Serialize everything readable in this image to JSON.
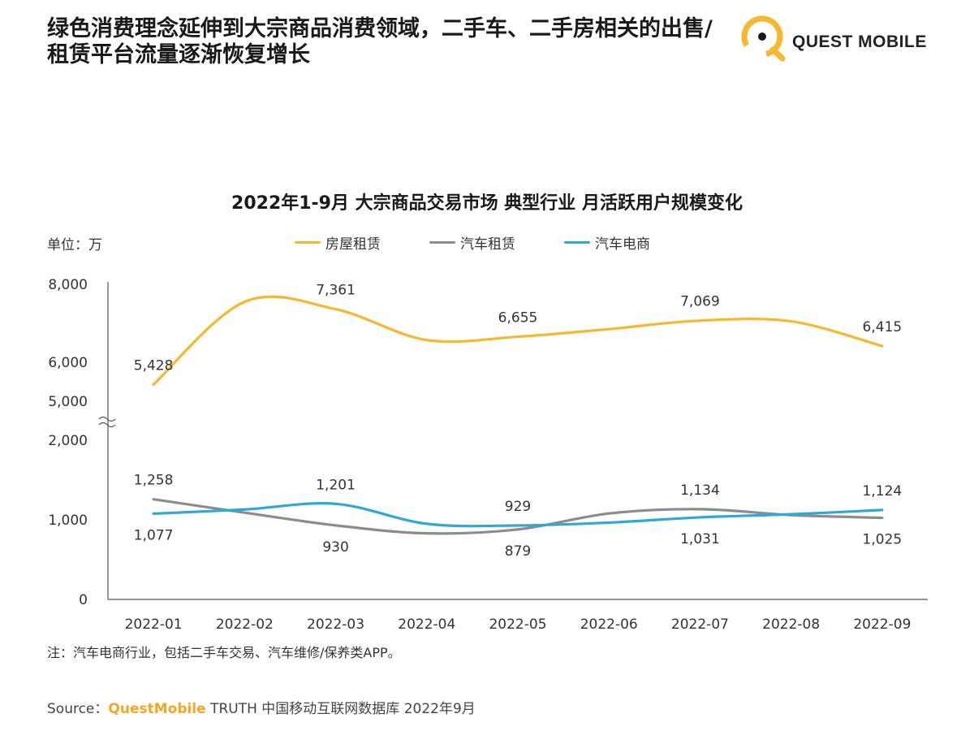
{
  "header": {
    "title": "绿色消费理念延伸到大宗商品消费领域，二手车、二手房相关的出售/租赁平台流量逐渐恢复增长",
    "brand": "QUEST MOBILE"
  },
  "chart": {
    "title": "2022年1-9月 大宗商品交易市场 典型行业 月活跃用户规模变化",
    "unit": "单位：万"
  },
  "colors": {
    "house": "#F5B82E",
    "car_rental": "#8C8C8C",
    "car_ecom": "#2EA8D8"
  },
  "chart_data": {
    "type": "line",
    "title": "2022年1-9月 大宗商品交易市场 典型行业 月活跃用户规模变化",
    "ylabel": "单位：万",
    "x": [
      "2022-01",
      "2022-02",
      "2022-03",
      "2022-04",
      "2022-05",
      "2022-06",
      "2022-07",
      "2022-08",
      "2022-09"
    ],
    "yticks": [
      "0",
      "1,000",
      "2,000",
      "5,000",
      "6,000",
      "8,000"
    ],
    "axis_break": "between 2,000 and 5,000",
    "legend_position": "top",
    "series": [
      {
        "name": "房屋租赁",
        "values": [
          5428,
          7550,
          7361,
          6570,
          6655,
          6850,
          7069,
          7050,
          6415
        ],
        "labels": [
          "5,428",
          "",
          "7,361",
          "",
          "6,655",
          "",
          "7,069",
          "",
          "6,415"
        ]
      },
      {
        "name": "汽车租赁",
        "values": [
          1258,
          1090,
          930,
          830,
          879,
          1080,
          1134,
          1060,
          1025
        ],
        "labels": [
          "1,258",
          "",
          "930",
          "",
          "879",
          "",
          "1,134",
          "",
          "1,025"
        ]
      },
      {
        "name": "汽车电商",
        "values": [
          1077,
          1130,
          1201,
          950,
          929,
          965,
          1031,
          1070,
          1124
        ],
        "labels": [
          "1,077",
          "",
          "1,201",
          "",
          "929",
          "",
          "1,031",
          "",
          "1,124"
        ]
      }
    ]
  },
  "footer": {
    "note": "注：汽车电商行业，包括二手车交易、汽车维修/保养类APP。",
    "source_prefix": "Source：",
    "source_brand": "QuestMobile",
    "source_rest": " TRUTH 中国移动互联网数据库 2022年9月"
  }
}
